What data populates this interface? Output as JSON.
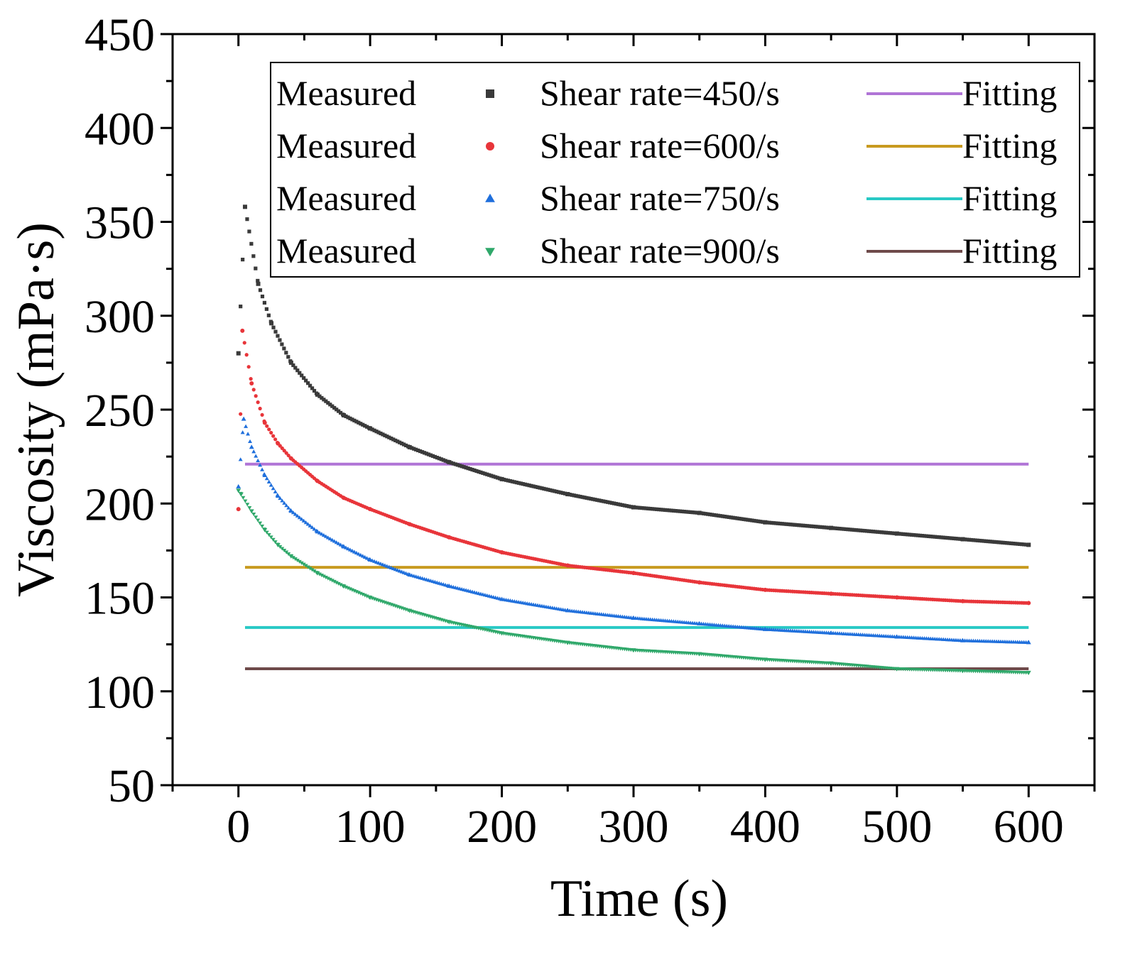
{
  "chart_data": {
    "type": "scatter",
    "xlabel": "Time (s)",
    "ylabel": "Viscosity (mPa·s)",
    "xlim": [
      -50,
      650
    ],
    "ylim": [
      50,
      450
    ],
    "xticks": [
      "0",
      "100",
      "200",
      "300",
      "400",
      "500",
      "600"
    ],
    "yticks": [
      "50",
      "100",
      "150",
      "200",
      "250",
      "300",
      "350",
      "400",
      "450"
    ],
    "legend_position": "top-right",
    "series": [
      {
        "name": "Shear rate=450/s",
        "measured_label": "Measured",
        "fit_label": "Fitting",
        "marker": "square",
        "color": "#3a3a3a",
        "fit_color": "#b074d6",
        "fit_value": 221,
        "x": [
          0,
          5,
          15,
          25,
          40,
          60,
          80,
          100,
          130,
          160,
          200,
          250,
          300,
          350,
          400,
          450,
          500,
          550,
          600
        ],
        "values": [
          280,
          358,
          317,
          296,
          275,
          258,
          247,
          240,
          230,
          222,
          213,
          205,
          198,
          195,
          190,
          187,
          184,
          181,
          178
        ]
      },
      {
        "name": "Shear rate=600/s",
        "measured_label": "Measured",
        "fit_label": "Fitting",
        "marker": "circle",
        "color": "#e8353a",
        "fit_color": "#c89a1f",
        "fit_value": 166,
        "x": [
          0,
          3,
          10,
          20,
          30,
          40,
          60,
          80,
          100,
          130,
          160,
          200,
          250,
          300,
          350,
          400,
          450,
          500,
          550,
          600
        ],
        "values": [
          197,
          292,
          264,
          243,
          232,
          224,
          212,
          203,
          197,
          189,
          182,
          174,
          167,
          163,
          158,
          154,
          152,
          150,
          148,
          147
        ]
      },
      {
        "name": "Shear rate=750/s",
        "measured_label": "Measured",
        "fit_label": "Fitting",
        "marker": "triangle-up",
        "color": "#1f6fdc",
        "fit_color": "#28c9c5",
        "fit_value": 134,
        "x": [
          0,
          4,
          10,
          20,
          30,
          40,
          60,
          80,
          100,
          130,
          160,
          200,
          250,
          300,
          350,
          400,
          450,
          500,
          550,
          600
        ],
        "values": [
          209,
          245,
          230,
          215,
          204,
          196,
          185,
          177,
          170,
          162,
          156,
          149,
          143,
          139,
          136,
          133,
          131,
          129,
          127,
          126
        ]
      },
      {
        "name": "Shear rate=900/s",
        "measured_label": "Measured",
        "fit_label": "Fitting",
        "marker": "triangle-down",
        "color": "#2fa86a",
        "fit_color": "#6e4a4a",
        "fit_value": 112,
        "x": [
          0,
          2,
          10,
          20,
          30,
          40,
          60,
          80,
          100,
          130,
          160,
          200,
          250,
          300,
          350,
          400,
          450,
          500,
          550,
          600
        ],
        "values": [
          207,
          205,
          196,
          186,
          178,
          172,
          163,
          156,
          150,
          143,
          137,
          131,
          126,
          122,
          120,
          117,
          115,
          112,
          111,
          110
        ]
      }
    ]
  }
}
